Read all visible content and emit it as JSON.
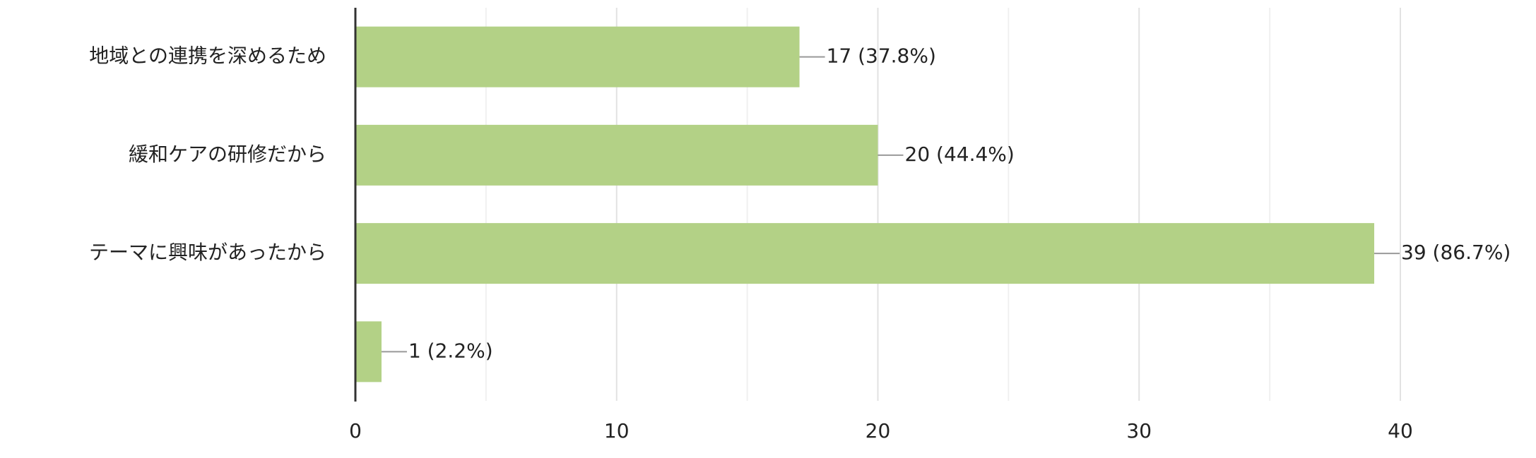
{
  "chart_data": {
    "type": "bar",
    "orientation": "horizontal",
    "categories": [
      "地域との連携を深めるため",
      "緩和ケアの研修だから",
      "テーマに興味があったから",
      null
    ],
    "values": [
      17,
      20,
      39,
      1
    ],
    "value_labels": [
      "17 (37.8%)",
      "20 (44.4%)",
      "39 (86.7%)",
      "1 (2.2%)"
    ],
    "color": "#b3d186",
    "xlim": [
      0,
      40
    ],
    "xticks": [
      0,
      10,
      20,
      30,
      40
    ],
    "xminorticks": [
      5,
      15,
      25,
      35
    ],
    "grid": true
  }
}
